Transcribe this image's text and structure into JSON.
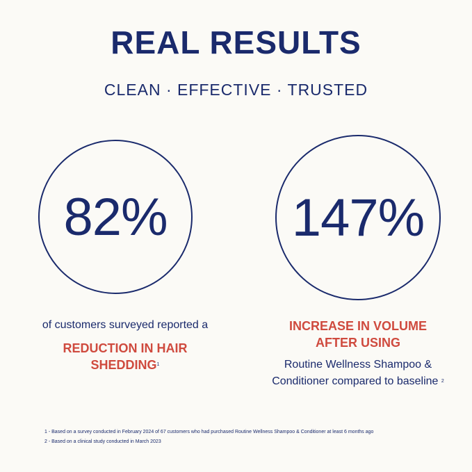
{
  "title": "REAL RESULTS",
  "subtitle": "CLEAN · EFFECTIVE · TRUSTED",
  "colors": {
    "navy": "#1a2a6c",
    "red": "#cf4a3e",
    "background": "#fbfaf6"
  },
  "stat1": {
    "value": "82%",
    "intro": "of customers surveyed reported a",
    "highlight_line1": "REDUCTION IN HAIR",
    "highlight_line2": "SHEDDING",
    "footnote_ref": "1"
  },
  "stat2": {
    "value": "147%",
    "highlight_line1": "INCREASE IN VOLUME",
    "highlight_line2": "AFTER USING",
    "detail_line1": "Routine Wellness Shampoo &",
    "detail_line2": "Conditioner compared to baseline",
    "footnote_ref": "2"
  },
  "footnotes": [
    "1 -  Based on a survey conducted in February 2024 of 67 customers who had purchased Routine Wellness Shampoo & Conditioner at least 6 months ago",
    "2 - Based on a clinical study conducted in March 2023"
  ]
}
